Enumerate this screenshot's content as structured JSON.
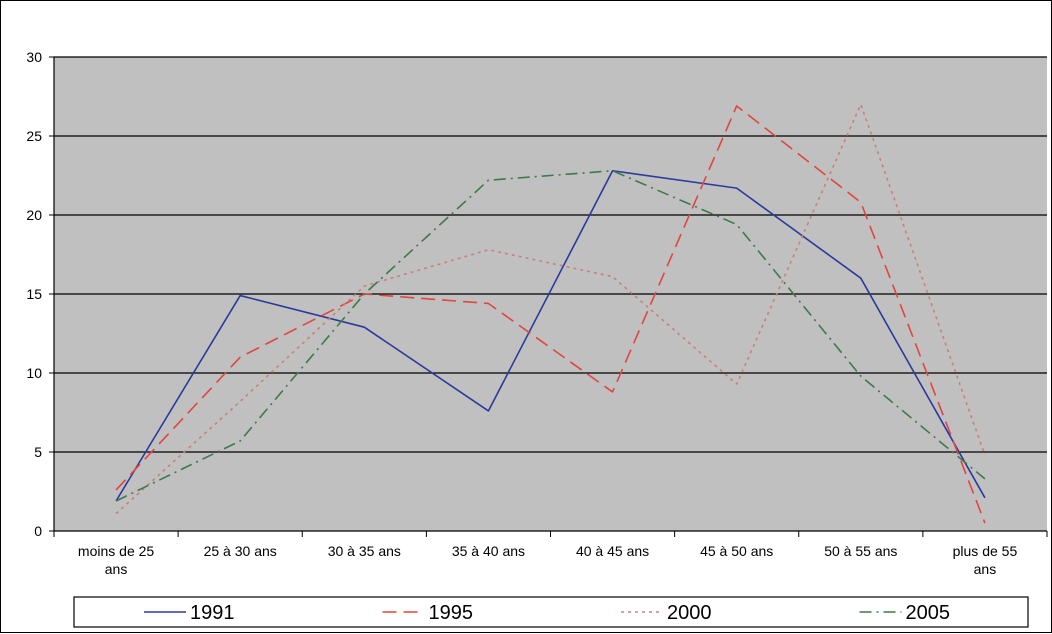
{
  "chart_data": {
    "type": "line",
    "categories": [
      [
        "moins de 25",
        "ans"
      ],
      [
        "25 à 30 ans"
      ],
      [
        "30 à 35 ans"
      ],
      [
        "35 à 40 ans"
      ],
      [
        "40 à 45 ans"
      ],
      [
        "45 à 50 ans"
      ],
      [
        "50 à 55 ans"
      ],
      [
        "plus de 55",
        "ans"
      ]
    ],
    "series": [
      {
        "name": "1991",
        "color": "#2b3a9c",
        "dash": "solid",
        "values": [
          1.9,
          14.9,
          12.9,
          7.6,
          22.8,
          21.7,
          16.0,
          2.1
        ]
      },
      {
        "name": "1995",
        "color": "#e0463f",
        "dash": "dashed",
        "values": [
          2.6,
          11.0,
          15.0,
          14.4,
          8.8,
          26.9,
          20.8,
          0.5
        ]
      },
      {
        "name": "2000",
        "color": "#c9807c",
        "dash": "dotted",
        "values": [
          1.1,
          8.2,
          15.5,
          17.8,
          16.1,
          9.3,
          27.0,
          4.8
        ]
      },
      {
        "name": "2005",
        "color": "#3d7a4c",
        "dash": "dash-dot",
        "values": [
          1.9,
          5.7,
          15.0,
          22.2,
          22.8,
          19.4,
          9.8,
          3.3
        ]
      }
    ],
    "yticks": [
      0,
      5,
      10,
      15,
      20,
      25,
      30
    ],
    "ylim": [
      0,
      30
    ],
    "grid": true,
    "plot_background": "#c0c0c0",
    "legend_position": "bottom",
    "title": "",
    "xlabel": "",
    "ylabel": ""
  }
}
